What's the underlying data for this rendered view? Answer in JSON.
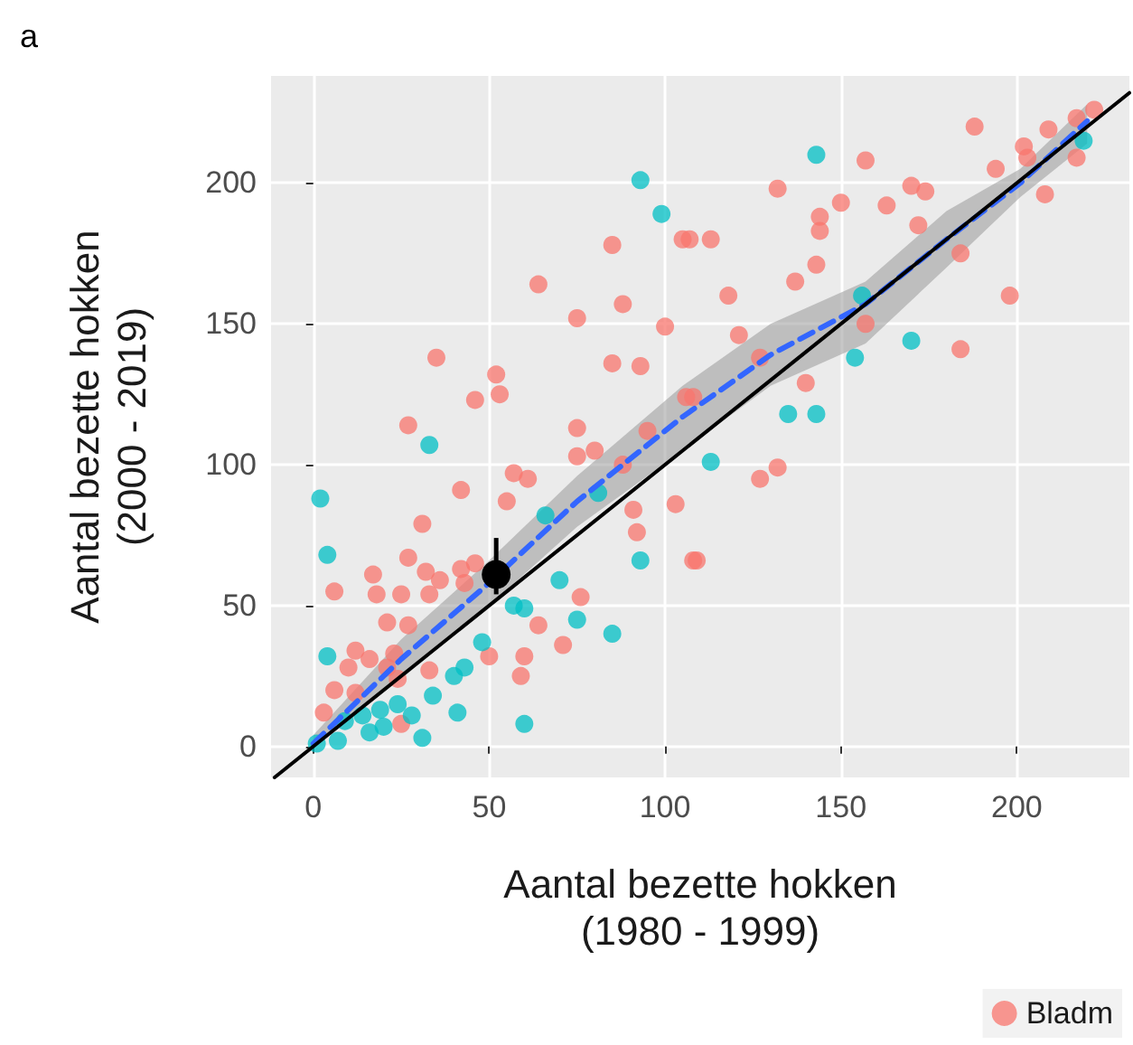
{
  "chart_data": {
    "type": "scatter",
    "title": "a",
    "xlabel": "Aantal bezette hokken\n(1980 - 1999)",
    "ylabel": "Aantal bezette hokken\n(2000 - 2019)",
    "xlim": [
      -12,
      232
    ],
    "ylim": [
      -11,
      238
    ],
    "xticks": [
      0,
      50,
      100,
      150,
      200
    ],
    "yticks": [
      0,
      50,
      100,
      150,
      200
    ],
    "grid": true,
    "legend": "bottom right",
    "marker": "circle",
    "series": [
      {
        "name": "Bladm",
        "color": "#f8766d",
        "x": [
          188,
          222,
          217,
          209,
          202,
          203,
          217,
          194,
          208,
          132,
          150,
          163,
          170,
          174,
          144,
          144,
          172,
          157,
          107,
          113,
          143,
          184,
          137,
          118,
          198,
          121,
          127,
          157,
          184,
          140,
          108,
          85,
          88,
          64,
          75,
          105,
          100,
          85,
          93,
          35,
          53,
          52,
          46,
          27,
          75,
          95,
          106,
          57,
          61,
          42,
          55,
          75,
          80,
          88,
          31,
          91,
          92,
          103,
          108,
          27,
          17,
          32,
          36,
          42,
          46,
          6,
          18,
          25,
          33,
          43,
          76,
          64,
          71,
          21,
          27,
          12,
          16,
          23,
          10,
          21,
          6,
          12,
          24,
          50,
          60,
          33,
          59,
          25,
          3,
          127,
          132,
          109
        ],
        "values": [
          220,
          226,
          223,
          219,
          213,
          209,
          209,
          205,
          196,
          198,
          193,
          192,
          199,
          197,
          188,
          183,
          185,
          208,
          180,
          180,
          171,
          175,
          165,
          160,
          160,
          146,
          138,
          150,
          141,
          129,
          124,
          178,
          157,
          164,
          152,
          180,
          149,
          136,
          135,
          138,
          125,
          132,
          123,
          114,
          113,
          112,
          124,
          97,
          95,
          91,
          87,
          103,
          105,
          100,
          79,
          84,
          76,
          86,
          66,
          67,
          61,
          62,
          59,
          63,
          65,
          55,
          54,
          54,
          54,
          58,
          53,
          43,
          36,
          44,
          43,
          34,
          31,
          33,
          28,
          28,
          20,
          19,
          24,
          32,
          32,
          27,
          25,
          8,
          12,
          95,
          99,
          66
        ]
      },
      {
        "color": "#00bfc4",
        "x": [
          143,
          219,
          156,
          170,
          154,
          135,
          143,
          93,
          99,
          33,
          2,
          66,
          81,
          70,
          57,
          60,
          75,
          85,
          93,
          4,
          4,
          48,
          43,
          40,
          34,
          41,
          60,
          31,
          1,
          4,
          9,
          14,
          19,
          24,
          16,
          28,
          7,
          20,
          113
        ],
        "values": [
          210,
          215,
          160,
          144,
          138,
          118,
          118,
          201,
          189,
          107,
          88,
          82,
          90,
          59,
          50,
          49,
          45,
          40,
          66,
          68,
          32,
          37,
          28,
          25,
          18,
          12,
          8,
          3,
          1,
          null,
          9,
          11,
          13,
          15,
          5,
          11,
          2,
          7,
          101
        ]
      },
      {
        "type": "line",
        "color": "#3366ff",
        "line_style": "dashed",
        "marker": "none",
        "x": [
          0,
          25,
          50,
          75,
          105,
          130,
          157,
          180,
          201,
          220
        ],
        "values": [
          1,
          31,
          58,
          87,
          117,
          139,
          157,
          180,
          200,
          222
        ],
        "lower": [
          0,
          24,
          50,
          78,
          105,
          128,
          143,
          170,
          195,
          214
        ],
        "upper": [
          4,
          38,
          66,
          96,
          128,
          150,
          165,
          190,
          205,
          228
        ]
      },
      {
        "type": "line",
        "color": "#000000",
        "line_style": "solid",
        "marker": "none",
        "x": [
          -11,
          232
        ],
        "values": [
          -11,
          232
        ]
      },
      {
        "color": "#000000",
        "x": [
          52
        ],
        "values": [
          61
        ],
        "errors": [
          [
            54,
            74
          ]
        ]
      }
    ]
  }
}
